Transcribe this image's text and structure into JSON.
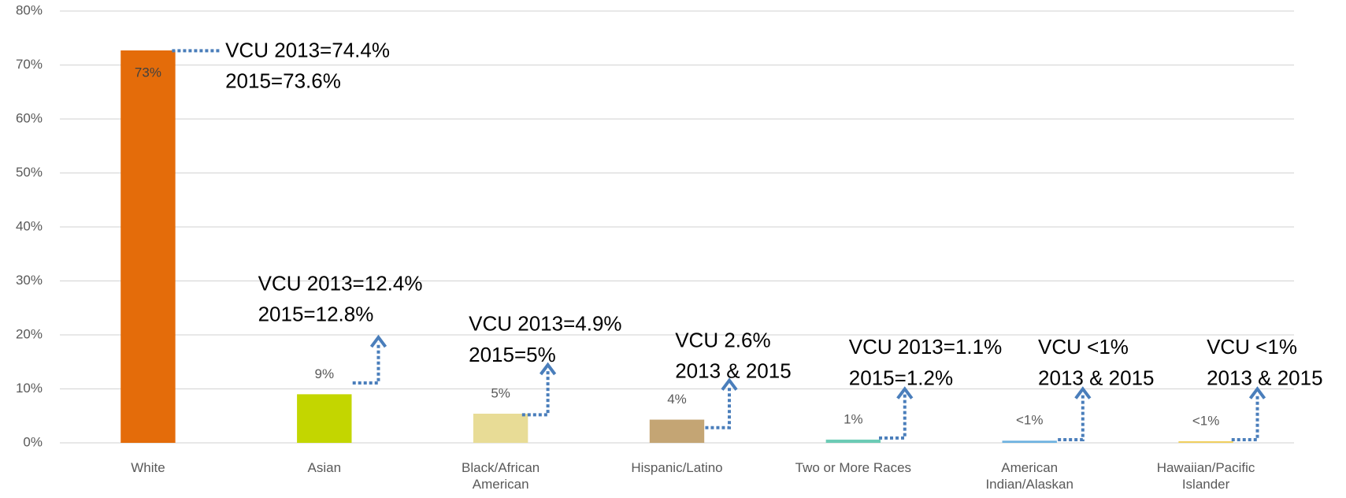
{
  "chart_data": {
    "type": "bar",
    "categories": [
      "White",
      "Asian",
      "Black/African American",
      "Hispanic/Latino",
      "Two or More Races",
      "American Indian/Alaskan",
      "Hawaiian/Pacific Islander"
    ],
    "values": [
      72.7,
      9,
      5.4,
      4.3,
      0.6,
      0.4,
      0.3
    ],
    "value_labels": [
      "73%",
      "9%",
      "5%",
      "4%",
      "1%",
      "<1%",
      "<1%"
    ],
    "colors": [
      "#e46c0a",
      "#c3d600",
      "#e8dc96",
      "#c4a574",
      "#6ccbb5",
      "#6fb3e0",
      "#f0d060"
    ],
    "ylim": [
      0,
      80
    ],
    "yticks": [
      {
        "value": 0,
        "label": "0%"
      },
      {
        "value": 10,
        "label": "10%"
      },
      {
        "value": 20,
        "label": "20%"
      },
      {
        "value": 30,
        "label": "30%"
      },
      {
        "value": 40,
        "label": "40%"
      },
      {
        "value": 50,
        "label": "50%"
      },
      {
        "value": 60,
        "label": "60%"
      },
      {
        "value": 70,
        "label": "70%"
      },
      {
        "value": 80,
        "label": "80%"
      }
    ],
    "grid": true,
    "annotations": [
      {
        "lines": [
          "VCU 2013=74.4%",
          "2015=73.6%"
        ]
      },
      {
        "lines": [
          "VCU 2013=12.4%",
          "2015=12.8%"
        ]
      },
      {
        "lines": [
          "VCU 2013=4.9%",
          "2015=5%"
        ]
      },
      {
        "lines": [
          "VCU 2.6%",
          "2013 & 2015"
        ]
      },
      {
        "lines": [
          "VCU 2013=1.1%",
          "2015=1.2%"
        ]
      },
      {
        "lines": [
          "VCU <1%",
          "2013 & 2015"
        ]
      },
      {
        "lines": [
          "VCU <1%",
          "2013 & 2015"
        ]
      }
    ]
  }
}
